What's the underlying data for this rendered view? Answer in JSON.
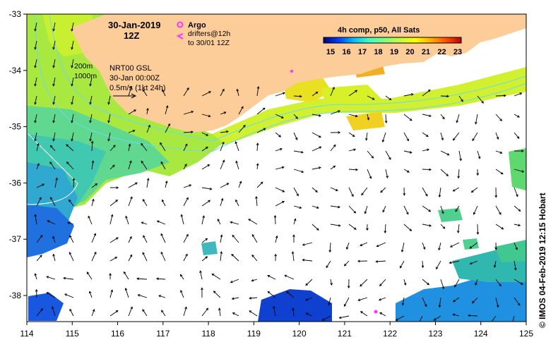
{
  "map": {
    "date_label": "30-Jan-2019",
    "time_label": "12Z",
    "argo_label": "Argo",
    "drifters_label_1": "drifters@12h",
    "drifters_label_2": "to 30/01 12Z",
    "iso_200": "200m",
    "iso_1000": "1000m",
    "nrt_label_1": "NRT00 GSL",
    "nrt_label_2": "30-Jan 00:00Z",
    "nrt_label_3": "0.5m/s (1kt 24h)",
    "colorbar_title": "4h comp, p50, All Sats",
    "colorbar_ticks": [
      "15",
      "16",
      "17",
      "18",
      "19",
      "20",
      "21",
      "22",
      "23"
    ],
    "colorbar_colors": [
      "#00007f",
      "#0040ff",
      "#00c0ff",
      "#40ffc0",
      "#80ff80",
      "#c0ff40",
      "#ffff00",
      "#ffb000",
      "#ff5000",
      "#c00000"
    ],
    "x_ticks": [
      "114",
      "115",
      "116",
      "117",
      "118",
      "119",
      "120",
      "121",
      "122",
      "123",
      "124",
      "125"
    ],
    "y_ticks": [
      "-33",
      "-34",
      "-35",
      "-36",
      "-37",
      "-38"
    ],
    "credit": "© IMOS 04-Feb-2019 12:15 Hobart",
    "land_color": "#fccc99",
    "argo_color": "#ff33ff"
  }
}
